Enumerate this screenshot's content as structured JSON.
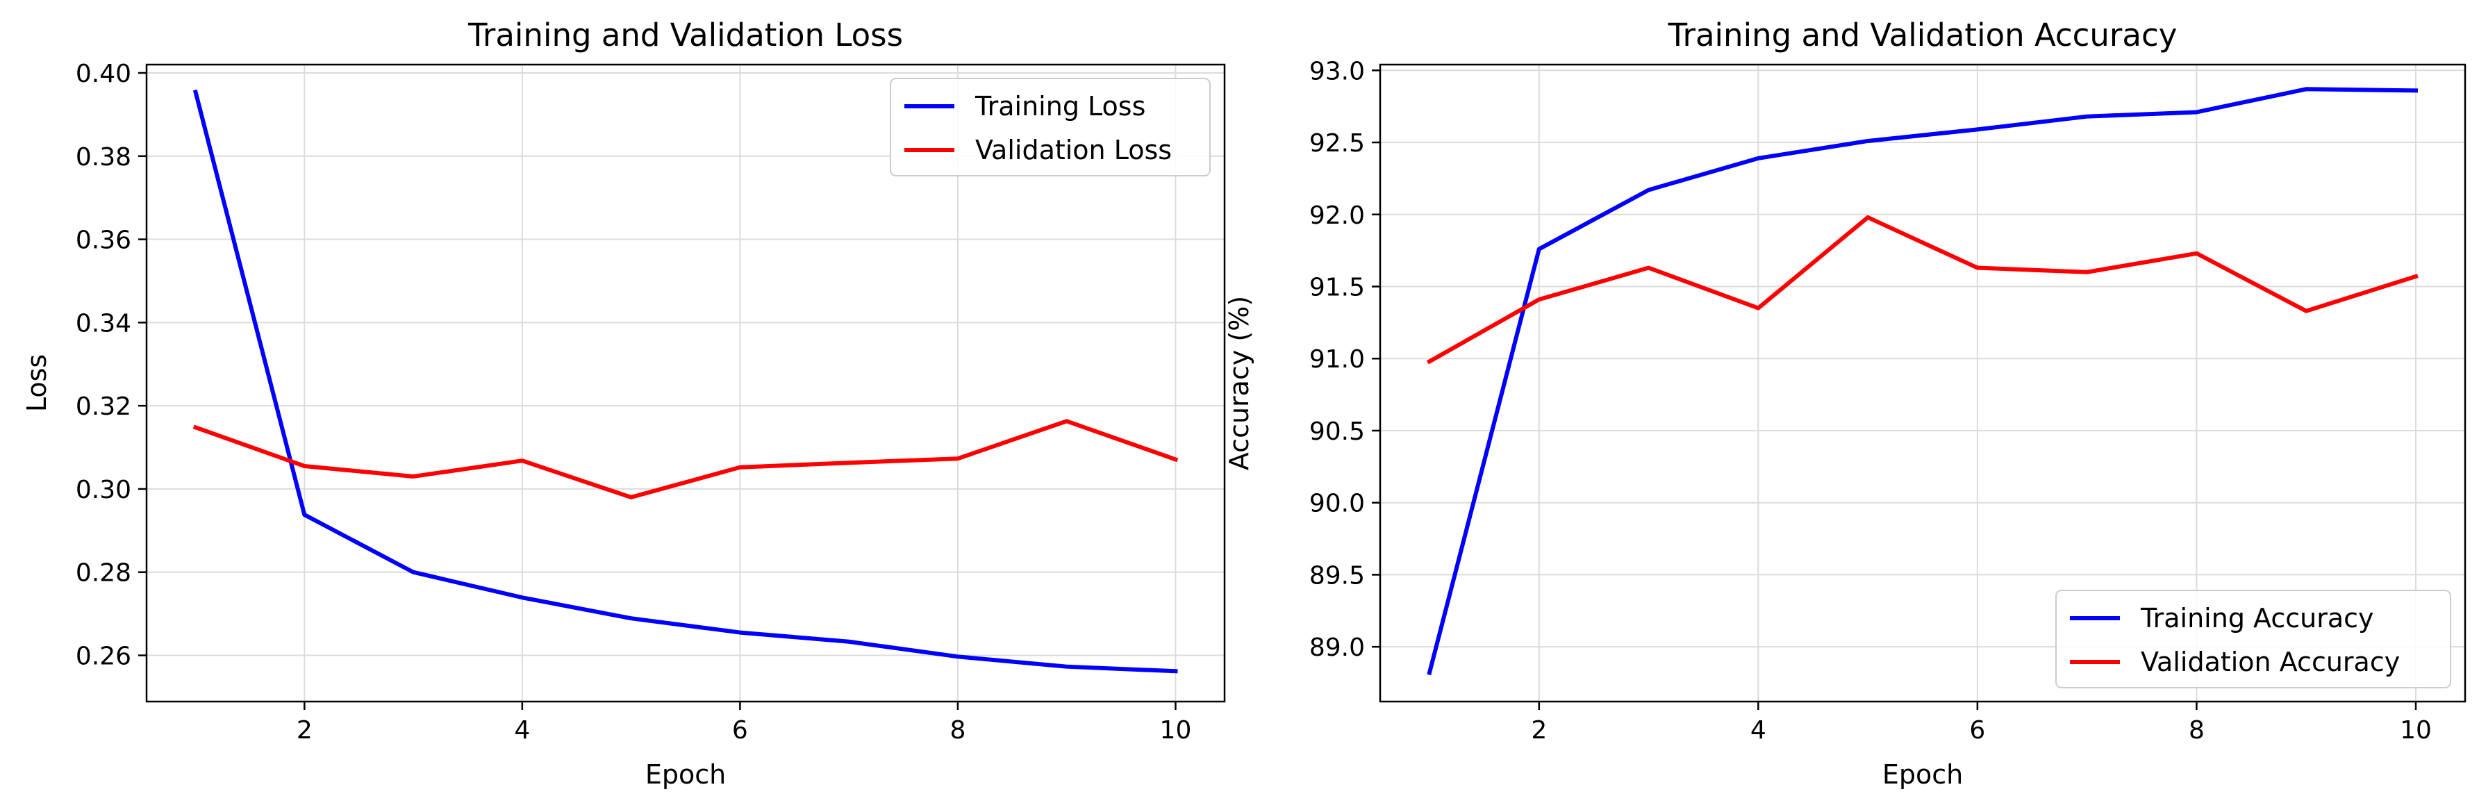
{
  "chart_data": [
    {
      "type": "line",
      "title": "Training and Validation Loss",
      "xlabel": "Epoch",
      "ylabel": "Loss",
      "x": [
        1,
        2,
        3,
        4,
        5,
        6,
        7,
        8,
        9,
        10
      ],
      "xlim": [
        0.55,
        10.45
      ],
      "ylim": [
        0.2489,
        0.402
      ],
      "xticks": [
        2,
        4,
        6,
        8,
        10
      ],
      "xtick_labels": [
        "2",
        "4",
        "6",
        "8",
        "10"
      ],
      "yticks": [
        0.26,
        0.28,
        0.3,
        0.32,
        0.34,
        0.36,
        0.38,
        0.4
      ],
      "ytick_labels": [
        "0.26",
        "0.28",
        "0.30",
        "0.32",
        "0.34",
        "0.36",
        "0.38",
        "0.40"
      ],
      "grid": true,
      "legend": "top-right",
      "series": [
        {
          "name": "Training Loss",
          "color": "#0000ff",
          "values": [
            0.3954,
            0.2938,
            0.28,
            0.2739,
            0.2689,
            0.2655,
            0.2633,
            0.2597,
            0.2573,
            0.2562
          ]
        },
        {
          "name": "Validation Loss",
          "color": "#ff0000",
          "values": [
            0.3148,
            0.3055,
            0.303,
            0.3068,
            0.298,
            0.3052,
            0.3063,
            0.3073,
            0.3163,
            0.3071
          ]
        }
      ]
    },
    {
      "type": "line",
      "title": "Training and Validation Accuracy",
      "xlabel": "Epoch",
      "ylabel": "Accuracy (%)",
      "x": [
        1,
        2,
        3,
        4,
        5,
        6,
        7,
        8,
        9,
        10
      ],
      "xlim": [
        0.55,
        10.45
      ],
      "ylim": [
        88.62,
        93.04
      ],
      "xticks": [
        2,
        4,
        6,
        8,
        10
      ],
      "xtick_labels": [
        "2",
        "4",
        "6",
        "8",
        "10"
      ],
      "yticks": [
        89.0,
        89.5,
        90.0,
        90.5,
        91.0,
        91.5,
        92.0,
        92.5,
        93.0
      ],
      "ytick_labels": [
        "89.0",
        "89.5",
        "90.0",
        "90.5",
        "91.0",
        "91.5",
        "92.0",
        "92.5",
        "93.0"
      ],
      "grid": true,
      "legend": "bottom-right",
      "series": [
        {
          "name": "Training Accuracy",
          "color": "#0000ff",
          "values": [
            88.82,
            91.76,
            92.17,
            92.39,
            92.51,
            92.59,
            92.68,
            92.71,
            92.87,
            92.86
          ]
        },
        {
          "name": "Validation Accuracy",
          "color": "#ff0000",
          "values": [
            90.98,
            91.41,
            91.63,
            91.35,
            91.98,
            91.63,
            91.6,
            91.73,
            91.33,
            91.57
          ]
        }
      ]
    }
  ]
}
